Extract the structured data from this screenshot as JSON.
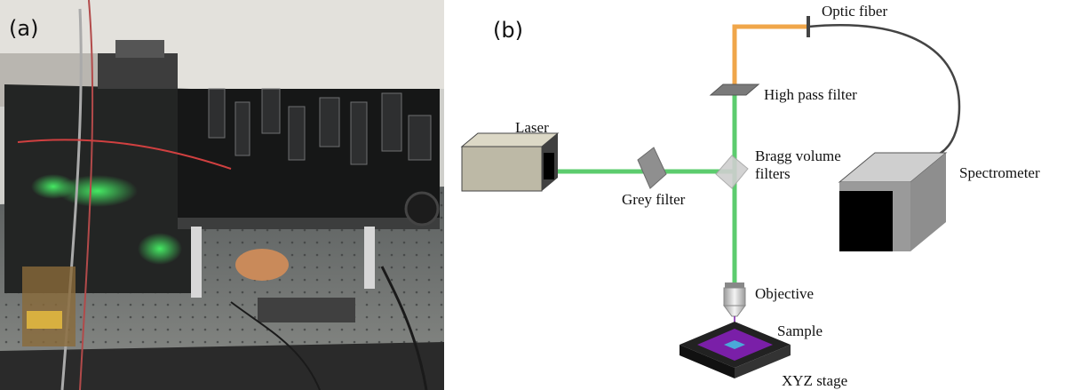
{
  "panels": {
    "a": {
      "label": "(a)"
    },
    "b": {
      "label": "(b)"
    }
  },
  "diagram": {
    "labels": {
      "laser": "Laser",
      "grey_filter": "Grey filter",
      "bragg_line1": "Bragg volume",
      "bragg_line2": "filters",
      "high_pass_filter": "High pass filter",
      "optic_fiber": "Optic fiber",
      "spectrometer": "Spectrometer",
      "objective": "Objective",
      "sample": "Sample",
      "xyz_stage": "XYZ stage"
    },
    "colors": {
      "beam_green": "#5ccc6e",
      "beam_orange": "#f0a64a",
      "fiber": "#444444",
      "sample_purple": "#7a1fa8",
      "sample_spot": "#4aa8d8"
    }
  }
}
